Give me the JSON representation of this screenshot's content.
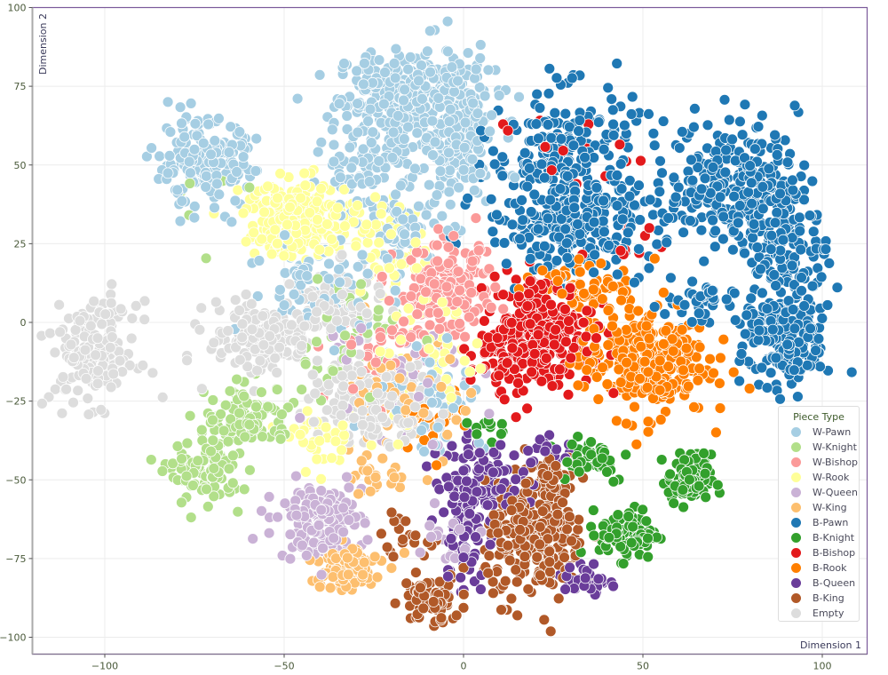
{
  "chart_data": {
    "type": "scatter",
    "title": "",
    "xlabel": "Dimension 1",
    "ylabel": "Dimension 2",
    "xlim": [
      -120,
      113
    ],
    "ylim": [
      -105,
      100
    ],
    "xticks": [
      -100,
      -50,
      0,
      50,
      100
    ],
    "yticks": [
      100,
      75,
      50,
      25,
      0,
      -25,
      -50,
      -75,
      -100
    ],
    "grid": true,
    "legend": {
      "title": "Piece Type",
      "position": "lower right",
      "entries": [
        "W-Pawn",
        "W-Knight",
        "W-Bishop",
        "W-Rook",
        "W-Queen",
        "W-King",
        "B-Pawn",
        "B-Knight",
        "B-Bishop",
        "B-Rook",
        "B-Queen",
        "B-King",
        "Empty"
      ]
    },
    "series": [
      {
        "name": "W-Pawn",
        "color": "#a6cee3",
        "clusters": [
          {
            "cx": -17,
            "cy": 72,
            "sx": 9,
            "sy": 7,
            "n": 260
          },
          {
            "cx": -2,
            "cy": 60,
            "sx": 6,
            "sy": 12,
            "n": 200
          },
          {
            "cx": -26,
            "cy": 52,
            "sx": 7,
            "sy": 6,
            "n": 90
          },
          {
            "cx": -72,
            "cy": 50,
            "sx": 7,
            "sy": 7,
            "n": 180
          },
          {
            "cx": -17,
            "cy": 30,
            "sx": 6,
            "sy": 6,
            "n": 60
          },
          {
            "cx": -40,
            "cy": 12,
            "sx": 10,
            "sy": 8,
            "n": 70
          },
          {
            "cx": -10,
            "cy": -22,
            "sx": 8,
            "sy": 10,
            "n": 60
          }
        ]
      },
      {
        "name": "W-Knight",
        "color": "#b2df8a",
        "clusters": [
          {
            "cx": -60,
            "cy": -30,
            "sx": 6,
            "sy": 5,
            "n": 110
          },
          {
            "cx": -72,
            "cy": -48,
            "sx": 5,
            "sy": 5,
            "n": 90
          },
          {
            "cx": -32,
            "cy": -5,
            "sx": 8,
            "sy": 10,
            "n": 50
          },
          {
            "cx": -72,
            "cy": 40,
            "sx": 6,
            "sy": 8,
            "n": 8
          }
        ]
      },
      {
        "name": "W-Bishop",
        "color": "#fb9a99",
        "clusters": [
          {
            "cx": -5,
            "cy": 10,
            "sx": 7,
            "sy": 7,
            "n": 170
          },
          {
            "cx": -22,
            "cy": -10,
            "sx": 8,
            "sy": 8,
            "n": 50
          }
        ]
      },
      {
        "name": "W-Rook",
        "color": "#ffff99",
        "clusters": [
          {
            "cx": -45,
            "cy": 33,
            "sx": 8,
            "sy": 6,
            "n": 220
          },
          {
            "cx": -20,
            "cy": 25,
            "sx": 5,
            "sy": 7,
            "n": 50
          },
          {
            "cx": -38,
            "cy": -38,
            "sx": 5,
            "sy": 4,
            "n": 40
          },
          {
            "cx": -10,
            "cy": -10,
            "sx": 10,
            "sy": 12,
            "n": 60
          }
        ]
      },
      {
        "name": "W-Queen",
        "color": "#cab2d6",
        "clusters": [
          {
            "cx": -40,
            "cy": -63,
            "sx": 6,
            "sy": 6,
            "n": 140
          },
          {
            "cx": -20,
            "cy": -15,
            "sx": 10,
            "sy": 12,
            "n": 40
          },
          {
            "cx": -5,
            "cy": -65,
            "sx": 4,
            "sy": 6,
            "n": 20
          }
        ]
      },
      {
        "name": "W-King",
        "color": "#fdbf6f",
        "clusters": [
          {
            "cx": -33,
            "cy": -78,
            "sx": 5,
            "sy": 4,
            "n": 110
          },
          {
            "cx": -15,
            "cy": -25,
            "sx": 8,
            "sy": 10,
            "n": 70
          },
          {
            "cx": -25,
            "cy": -50,
            "sx": 3,
            "sy": 3,
            "n": 25
          }
        ]
      },
      {
        "name": "B-Pawn",
        "color": "#1f78b4",
        "clusters": [
          {
            "cx": 28,
            "cy": 55,
            "sx": 10,
            "sy": 10,
            "n": 200
          },
          {
            "cx": 30,
            "cy": 30,
            "sx": 12,
            "sy": 7,
            "n": 260
          },
          {
            "cx": 75,
            "cy": 45,
            "sx": 9,
            "sy": 10,
            "n": 250
          },
          {
            "cx": 90,
            "cy": 25,
            "sx": 6,
            "sy": 8,
            "n": 120
          },
          {
            "cx": 90,
            "cy": -5,
            "sx": 6,
            "sy": 8,
            "n": 200
          },
          {
            "cx": 65,
            "cy": 5,
            "sx": 5,
            "sy": 4,
            "n": 40
          }
        ]
      },
      {
        "name": "B-Knight",
        "color": "#33a02c",
        "clusters": [
          {
            "cx": 63,
            "cy": -50,
            "sx": 3,
            "sy": 4,
            "n": 110
          },
          {
            "cx": 46,
            "cy": -67,
            "sx": 4,
            "sy": 4,
            "n": 90
          },
          {
            "cx": 35,
            "cy": -43,
            "sx": 6,
            "sy": 4,
            "n": 40
          },
          {
            "cx": 7,
            "cy": -33,
            "sx": 3,
            "sy": 2,
            "n": 12
          }
        ]
      },
      {
        "name": "B-Bishop",
        "color": "#e31a1c",
        "clusters": [
          {
            "cx": 22,
            "cy": -3,
            "sx": 7,
            "sy": 9,
            "n": 260
          },
          {
            "cx": 10,
            "cy": -10,
            "sx": 4,
            "sy": 5,
            "n": 50
          },
          {
            "cx": 27,
            "cy": 55,
            "sx": 9,
            "sy": 6,
            "n": 16
          },
          {
            "cx": 48,
            "cy": 25,
            "sx": 4,
            "sy": 3,
            "n": 10
          }
        ]
      },
      {
        "name": "B-Rook",
        "color": "#ff7f00",
        "clusters": [
          {
            "cx": 50,
            "cy": -12,
            "sx": 9,
            "sy": 9,
            "n": 280
          },
          {
            "cx": 33,
            "cy": 12,
            "sx": 8,
            "sy": 3,
            "n": 60
          },
          {
            "cx": -8,
            "cy": -30,
            "sx": 5,
            "sy": 5,
            "n": 20
          }
        ]
      },
      {
        "name": "B-Queen",
        "color": "#6a3d9a",
        "clusters": [
          {
            "cx": 4,
            "cy": -50,
            "sx": 6,
            "sy": 6,
            "n": 110
          },
          {
            "cx": 0,
            "cy": -70,
            "sx": 3,
            "sy": 8,
            "n": 50
          },
          {
            "cx": 34,
            "cy": -82,
            "sx": 3,
            "sy": 3,
            "n": 40
          },
          {
            "cx": 25,
            "cy": -42,
            "sx": 5,
            "sy": 3,
            "n": 20
          }
        ]
      },
      {
        "name": "B-King",
        "color": "#b15928",
        "clusters": [
          {
            "cx": 20,
            "cy": -70,
            "sx": 7,
            "sy": 9,
            "n": 240
          },
          {
            "cx": -9,
            "cy": -88,
            "sx": 4,
            "sy": 4,
            "n": 70
          },
          {
            "cx": 24,
            "cy": -48,
            "sx": 5,
            "sy": 4,
            "n": 40
          },
          {
            "cx": -18,
            "cy": -68,
            "sx": 4,
            "sy": 3,
            "n": 20
          }
        ]
      },
      {
        "name": "Empty",
        "color": "#dddddd",
        "clusters": [
          {
            "cx": -103,
            "cy": -10,
            "sx": 6,
            "sy": 8,
            "n": 170
          },
          {
            "cx": -55,
            "cy": -5,
            "sx": 8,
            "sy": 6,
            "n": 170
          },
          {
            "cx": -35,
            "cy": 5,
            "sx": 6,
            "sy": 6,
            "n": 80
          },
          {
            "cx": -25,
            "cy": -25,
            "sx": 8,
            "sy": 6,
            "n": 220
          }
        ]
      }
    ]
  }
}
